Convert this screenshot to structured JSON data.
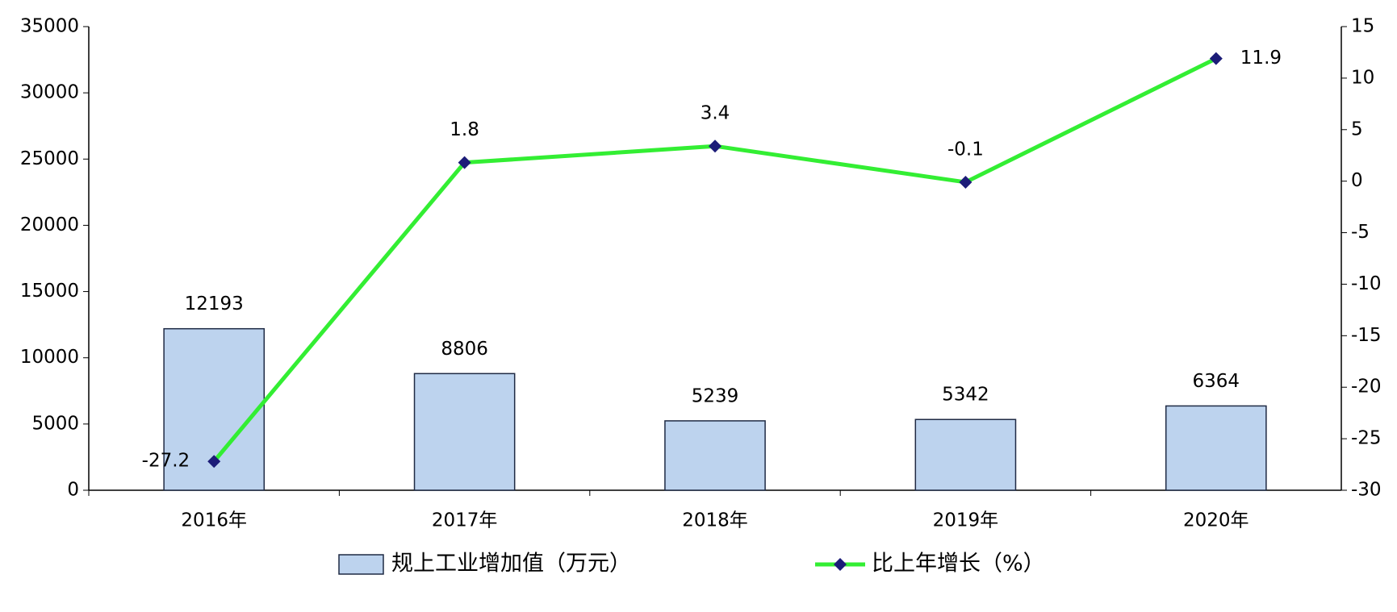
{
  "chart_data": {
    "type": "bar",
    "categories": [
      "2016年",
      "2017年",
      "2018年",
      "2019年",
      "2020年"
    ],
    "series": [
      {
        "name": "规上工业增加值（万元）",
        "type": "bar",
        "color": "#bdd3ee",
        "values": [
          12193,
          8806,
          5239,
          5342,
          6364
        ]
      },
      {
        "name": "比上年增长（%）",
        "type": "line",
        "axis": "y2",
        "color": "#33ee33",
        "marker_color": "#1c1c78",
        "values": [
          -27.2,
          1.8,
          3.4,
          -0.1,
          11.9
        ]
      }
    ],
    "ylim": [
      0,
      35000
    ],
    "yticks": [
      0,
      5000,
      10000,
      15000,
      20000,
      25000,
      30000,
      35000
    ],
    "y2lim": [
      -30,
      15
    ],
    "y2ticks": [
      -30,
      -25,
      -20,
      -15,
      -10,
      -5,
      0,
      5,
      10,
      15
    ],
    "grid": false,
    "legend": "bottom"
  }
}
